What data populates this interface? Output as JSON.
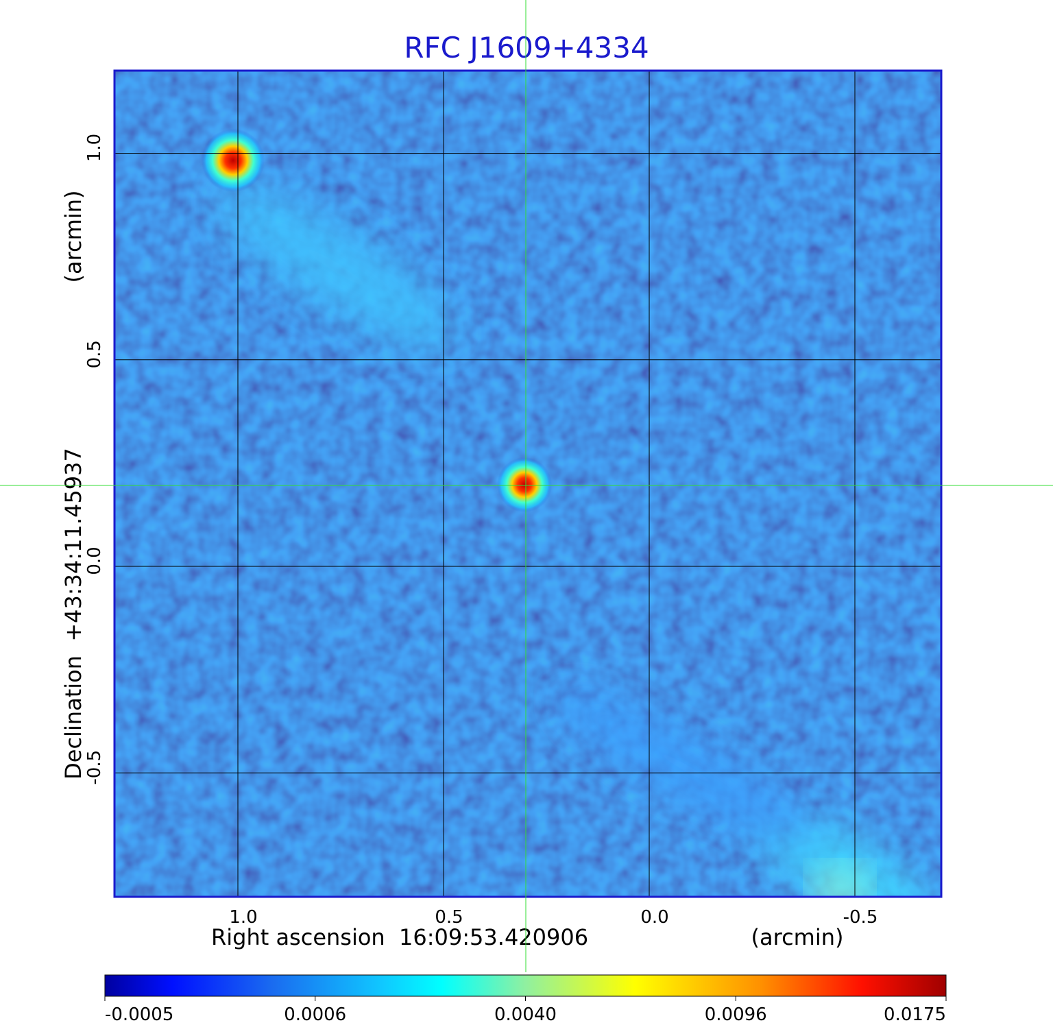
{
  "chart_data": {
    "type": "image",
    "title": "RFC J1609+4334",
    "xlabel": "Right ascension  16:09:53.420906",
    "xunit": "(arcmin)",
    "ylabel": "Declination  +43:34:11.45937",
    "yunit": "(arcmin)",
    "xlim": [
      1.3,
      -0.71
    ],
    "ylim": [
      -0.8,
      1.2
    ],
    "xticks": [
      {
        "value": 1,
        "label": "1.0"
      },
      0.5,
      {
        "value": 0,
        "label": "0.0"
      },
      -0.5
    ],
    "yticks": [
      -0.5,
      {
        "value": 0,
        "label": "0.0"
      },
      0.5,
      {
        "value": 1,
        "label": "1.0"
      }
    ],
    "grid": true,
    "colorbar": {
      "lim": [
        -0.0005,
        0.0175
      ],
      "ticks": [
        -0.0005,
        0.0006,
        {
          "value": 0.004,
          "label": "0.0040"
        },
        0.0096,
        0.0175
      ]
    }
  }
}
